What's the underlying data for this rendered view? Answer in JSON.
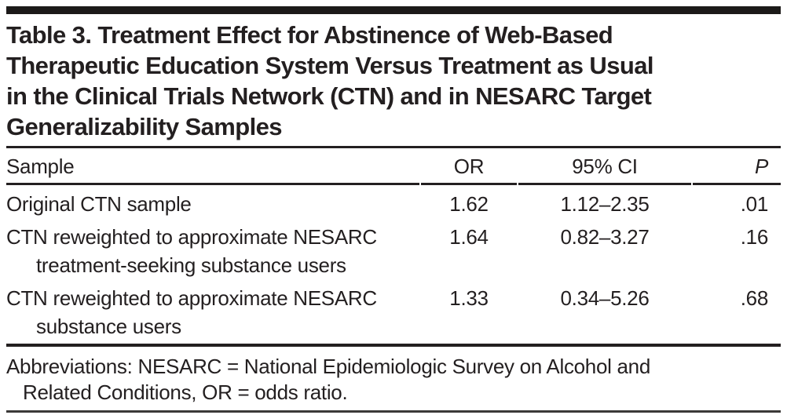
{
  "title": {
    "lines": [
      "Table 3. Treatment Effect for Abstinence of Web-Based",
      "Therapeutic Education System Versus Treatment as Usual",
      "in the Clinical Trials Network (CTN) and in NESARC Target",
      "Generalizability Samples"
    ]
  },
  "table": {
    "headers": {
      "sample": "Sample",
      "or": "OR",
      "ci": "95% CI",
      "p": "P"
    },
    "rows": [
      {
        "sample_line1": "Original CTN sample",
        "sample_line2": "",
        "or": "1.62",
        "ci": "1.12–2.35",
        "p": ".01"
      },
      {
        "sample_line1": "CTN reweighted to approximate NESARC",
        "sample_line2": "treatment-seeking substance users",
        "or": "1.64",
        "ci": "0.82–3.27",
        "p": ".16"
      },
      {
        "sample_line1": "CTN reweighted to approximate NESARC",
        "sample_line2": "substance users",
        "or": "1.33",
        "ci": "0.34–5.26",
        "p": ".68"
      }
    ]
  },
  "footnote": {
    "lines": [
      "Abbreviations: NESARC = National Epidemiologic Survey on Alcohol and",
      "Related Conditions, OR = odds ratio."
    ]
  },
  "colors": {
    "text": "#231f20",
    "rule": "#231f20",
    "top_bar": "#1c1a19",
    "background": "#ffffff"
  }
}
